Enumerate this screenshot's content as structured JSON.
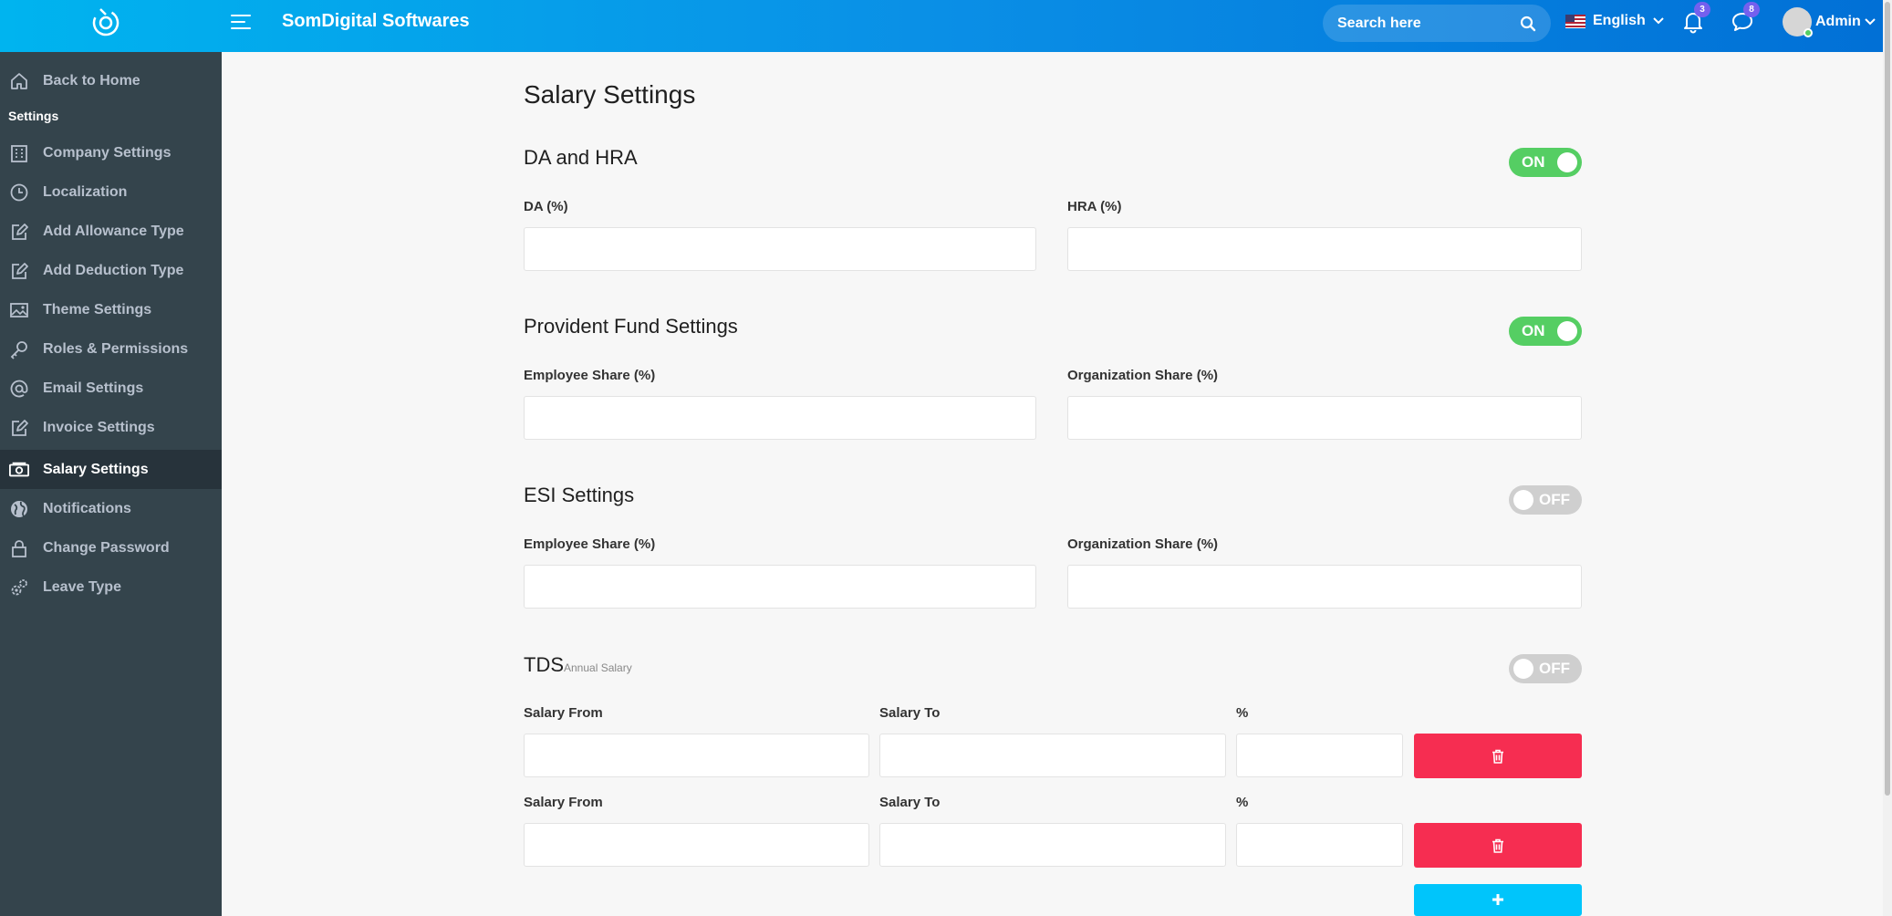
{
  "header": {
    "app_title": "SomDigital Softwares",
    "search_placeholder": "Search here",
    "language": "English",
    "notifications_count": "3",
    "messages_count": "8",
    "user_name": "Admin",
    "gradient_colors": [
      "#00b4ef",
      "#0170d6"
    ]
  },
  "sidebar": {
    "back_label": "Back to Home",
    "section_heading": "Settings",
    "items": [
      {
        "label": "Company Settings",
        "icon": "building-icon"
      },
      {
        "label": "Localization",
        "icon": "clock-icon"
      },
      {
        "label": "Add Allowance Type",
        "icon": "edit-icon"
      },
      {
        "label": "Add Deduction Type",
        "icon": "edit-icon"
      },
      {
        "label": "Theme Settings",
        "icon": "image-icon"
      },
      {
        "label": "Roles & Permissions",
        "icon": "key-icon"
      },
      {
        "label": "Email Settings",
        "icon": "at-icon"
      },
      {
        "label": "Invoice Settings",
        "icon": "edit-icon"
      },
      {
        "label": "Salary Settings",
        "icon": "money-icon",
        "active": true
      },
      {
        "label": "Notifications",
        "icon": "globe-icon"
      },
      {
        "label": "Change Password",
        "icon": "lock-icon"
      },
      {
        "label": "Leave Type",
        "icon": "cogs-icon"
      }
    ],
    "bg_color": "#34444c"
  },
  "main": {
    "page_title": "Salary Settings",
    "da_hra": {
      "title": "DA and HRA",
      "toggle": "ON",
      "da_label": "DA (%)",
      "hra_label": "HRA (%)"
    },
    "pf": {
      "title": "Provident Fund Settings",
      "toggle": "ON",
      "employee_label": "Employee Share (%)",
      "org_label": "Organization Share (%)"
    },
    "esi": {
      "title": "ESI Settings",
      "toggle": "OFF",
      "employee_label": "Employee Share (%)",
      "org_label": "Organization Share (%)"
    },
    "tds": {
      "title": "TDS",
      "subtitle": "Annual Salary",
      "toggle": "OFF",
      "rows": [
        {
          "from_label": "Salary From",
          "to_label": "Salary To",
          "pct_label": "%"
        },
        {
          "from_label": "Salary From",
          "to_label": "Salary To",
          "pct_label": "%"
        }
      ]
    }
  },
  "colors": {
    "toggle_on": "#55ce63",
    "toggle_off": "#cfcfcf",
    "delete_button": "#f62d51",
    "add_button": "#00c5fb"
  }
}
